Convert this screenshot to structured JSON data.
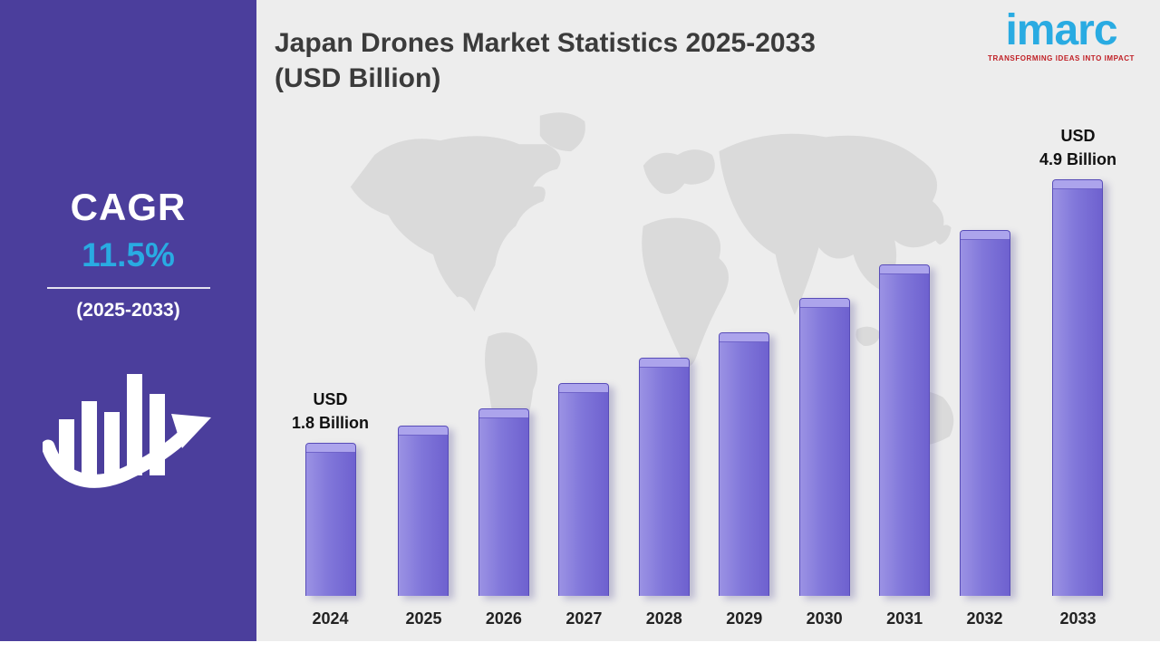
{
  "sidebar": {
    "cagr_label": "CAGR",
    "cagr_value": "11.5%",
    "period": "(2025-2033)",
    "icon": "bar-chart-growth-arrow-icon",
    "background_color": "#4B3E9C",
    "accent_color": "#29ABE2"
  },
  "header": {
    "title_line1": "Japan Drones Market Statistics 2025-2033",
    "title_line2": "(USD Billion)"
  },
  "logo": {
    "name": "imarc",
    "tagline": "TRANSFORMING IDEAS INTO IMPACT",
    "brand_color": "#29ABE2",
    "tagline_color": "#C01F25"
  },
  "chart_data": {
    "type": "bar",
    "title": "Japan Drones Market Statistics 2025-2033 (USD Billion)",
    "categories": [
      "2024",
      "2025",
      "2026",
      "2027",
      "2028",
      "2029",
      "2030",
      "2031",
      "2032",
      "2033"
    ],
    "values": [
      1.8,
      2.0,
      2.2,
      2.5,
      2.8,
      3.1,
      3.5,
      3.9,
      4.3,
      4.9
    ],
    "unit": "USD Billion",
    "xlabel": "",
    "ylabel": "",
    "ylim": [
      0,
      4.9
    ],
    "grid": false,
    "legend": false,
    "bar_color": "#7A6ED6",
    "bar_top_color": "#ACA4EC",
    "annotations": [
      {
        "index": 0,
        "lines": [
          "USD",
          "1.8 Billion"
        ]
      },
      {
        "index": 9,
        "lines": [
          "USD",
          "4.9 Billion"
        ]
      }
    ]
  }
}
